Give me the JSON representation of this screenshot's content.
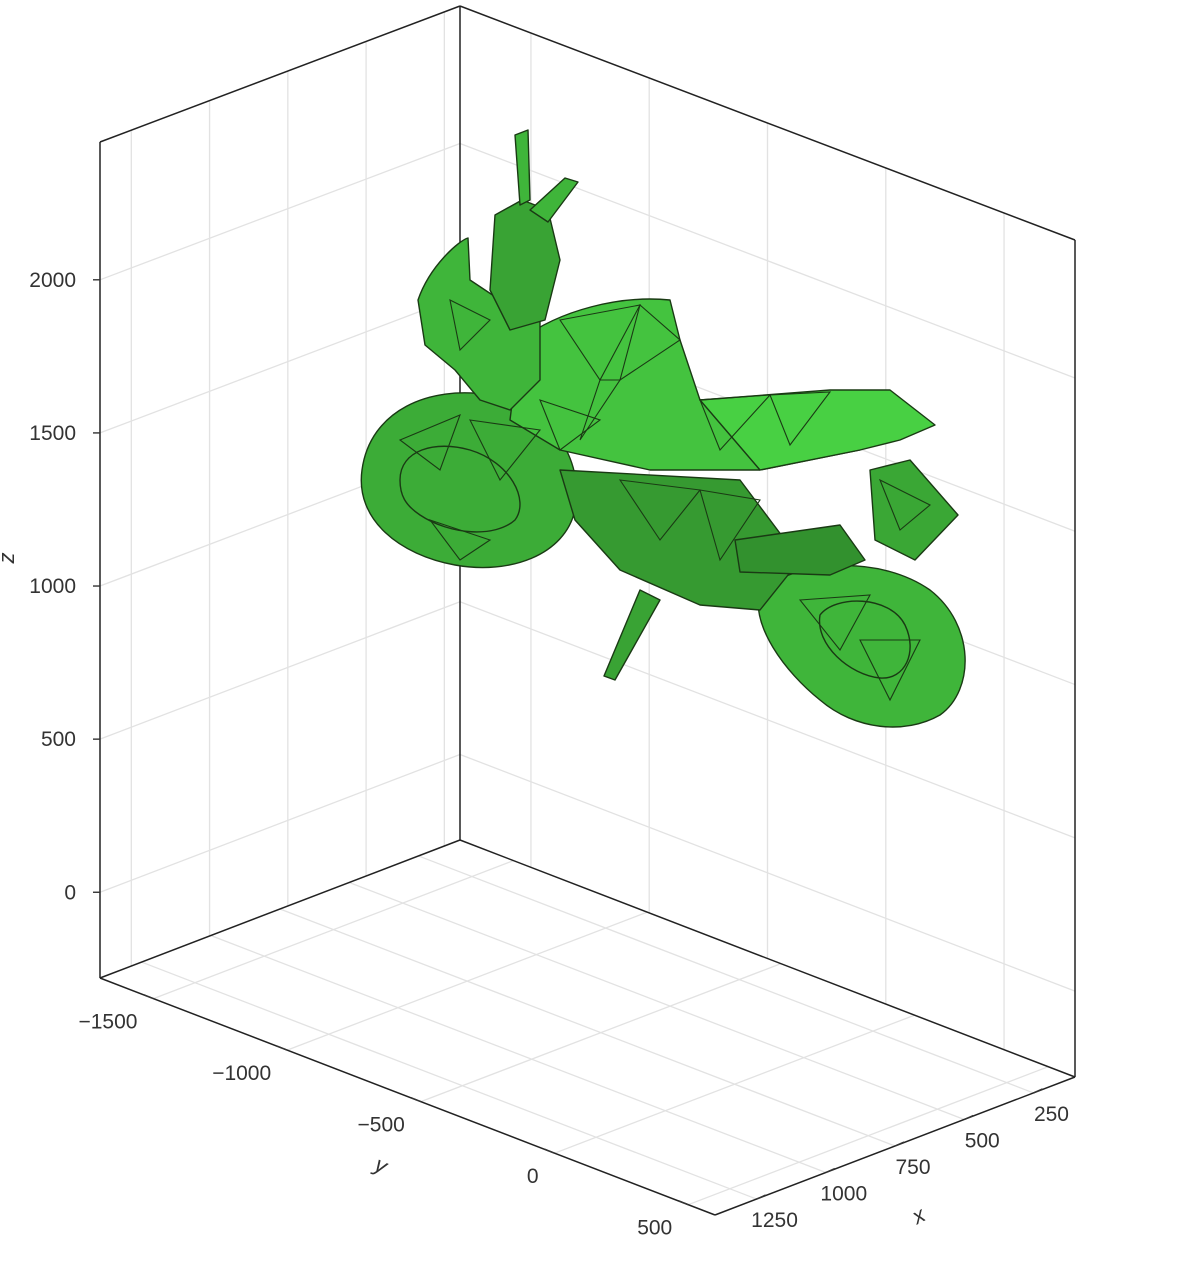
{
  "chart_data": {
    "type": "mesh3d",
    "xlabel": "x",
    "ylabel": "y",
    "zlabel": "z",
    "x_ticks": [
      250,
      500,
      750,
      1000,
      1250
    ],
    "x_tick_labels": [
      "250",
      "500",
      "750",
      "1000",
      "1250"
    ],
    "y_ticks": [
      -1500,
      -1000,
      -500,
      0,
      500
    ],
    "y_tick_labels": [
      "−1500",
      "−1000",
      "−500",
      "0",
      "500"
    ],
    "z_ticks": [
      0,
      500,
      1000,
      1500,
      2000
    ],
    "z_tick_labels": [
      "0",
      "500",
      "1000",
      "1500",
      "2000"
    ],
    "xlim": [
      100,
      1400
    ],
    "ylim": [
      -1700,
      600
    ],
    "zlim": [
      -280,
      2450
    ],
    "grid": true,
    "mesh_color": "#3fb53a",
    "mesh_edge_color": "#1a3a14"
  }
}
